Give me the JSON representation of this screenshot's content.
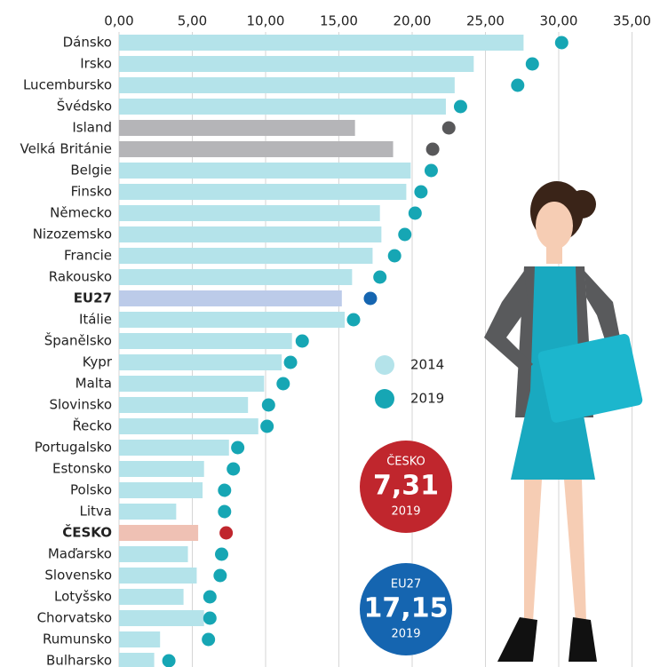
{
  "chart_data": {
    "type": "bar-dot",
    "categories": [
      "Dánsko",
      "Irsko",
      "Lucembursko",
      "Švédsko",
      "Island",
      "Velká Británie",
      "Belgie",
      "Finsko",
      "Německo",
      "Nizozemsko",
      "Francie",
      "Rakousko",
      "EU27",
      "Itálie",
      "Španělsko",
      "Kypr",
      "Malta",
      "Slovinsko",
      "Řecko",
      "Portugalsko",
      "Estonsko",
      "Polsko",
      "Litva",
      "ČESKO",
      "Maďarsko",
      "Slovensko",
      "Lotyšsko",
      "Chorvatsko",
      "Rumunsko",
      "Bulharsko"
    ],
    "highlight": [
      "EU27",
      "ČESKO"
    ],
    "series": [
      {
        "name": "2014",
        "color": "#b4e3ea",
        "colors": [
          "#b4e3ea",
          "#b4e3ea",
          "#b4e3ea",
          "#b4e3ea",
          "#b5b5b8",
          "#b5b5b8",
          "#b4e3ea",
          "#b4e3ea",
          "#b4e3ea",
          "#b4e3ea",
          "#b4e3ea",
          "#b4e3ea",
          "#bccbe9",
          "#b4e3ea",
          "#b4e3ea",
          "#b4e3ea",
          "#b4e3ea",
          "#b4e3ea",
          "#b4e3ea",
          "#b4e3ea",
          "#b4e3ea",
          "#b4e3ea",
          "#b4e3ea",
          "#efc1b4",
          "#b4e3ea",
          "#b4e3ea",
          "#b4e3ea",
          "#b4e3ea",
          "#b4e3ea",
          "#b4e3ea"
        ],
        "values": [
          27.6,
          24.2,
          22.9,
          22.3,
          16.1,
          18.7,
          19.9,
          19.6,
          17.8,
          17.9,
          17.3,
          15.9,
          15.2,
          15.4,
          11.8,
          11.1,
          9.9,
          8.8,
          9.5,
          7.5,
          5.8,
          5.7,
          3.9,
          5.4,
          4.7,
          5.3,
          4.4,
          5.8,
          2.8,
          2.4
        ]
      },
      {
        "name": "2019",
        "color": "#16a6b4",
        "colors": [
          "#16a6b4",
          "#16a6b4",
          "#16a6b4",
          "#16a6b4",
          "#58585a",
          "#58585a",
          "#16a6b4",
          "#16a6b4",
          "#16a6b4",
          "#16a6b4",
          "#16a6b4",
          "#16a6b4",
          "#1565b0",
          "#16a6b4",
          "#16a6b4",
          "#16a6b4",
          "#16a6b4",
          "#16a6b4",
          "#16a6b4",
          "#16a6b4",
          "#16a6b4",
          "#16a6b4",
          "#16a6b4",
          "#c0262d",
          "#16a6b4",
          "#16a6b4",
          "#16a6b4",
          "#16a6b4",
          "#16a6b4",
          "#16a6b4"
        ],
        "values": [
          30.2,
          28.2,
          27.2,
          23.3,
          22.5,
          21.4,
          21.3,
          20.6,
          20.2,
          19.5,
          18.8,
          17.8,
          17.15,
          16.0,
          12.5,
          11.7,
          11.2,
          10.2,
          10.1,
          8.1,
          7.8,
          7.2,
          7.2,
          7.31,
          7.0,
          6.9,
          6.2,
          6.2,
          6.1,
          3.4
        ]
      }
    ],
    "xlim": [
      0,
      35
    ],
    "xticks": [
      {
        "value": 0,
        "label": "0,00"
      },
      {
        "value": 5,
        "label": "5,00"
      },
      {
        "value": 10,
        "label": "10,00"
      },
      {
        "value": 15,
        "label": "15,00"
      },
      {
        "value": 20,
        "label": "20,00"
      },
      {
        "value": 25,
        "label": "25,00"
      },
      {
        "value": 30,
        "label": "30,00"
      },
      {
        "value": 35,
        "label": "35,00"
      }
    ],
    "grid": true,
    "annotations": [
      {
        "label": "ČESKO",
        "value": "7,31",
        "year": "2019",
        "color": "#c0262d"
      },
      {
        "label": "EU27",
        "value": "17,15",
        "year": "2019",
        "color": "#1565b0"
      }
    ]
  }
}
